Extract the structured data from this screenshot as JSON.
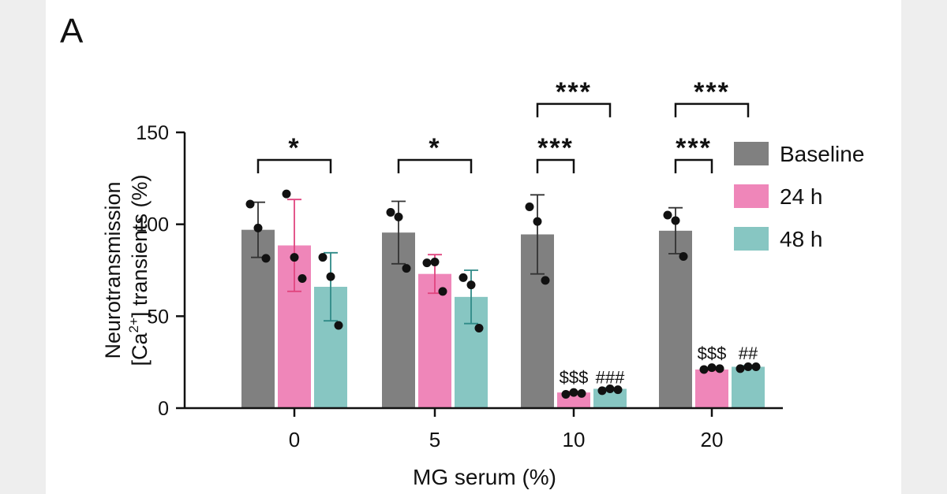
{
  "panel_label": "A",
  "chart_data": {
    "type": "bar",
    "xlabel": "MG serum (%)",
    "ylabel_line1": "Neurotransmission",
    "ylabel_line2_pre": "[Ca",
    "ylabel_line2_sup": "2+",
    "ylabel_line2_post": "] transients (%)",
    "ylim": [
      0,
      150
    ],
    "yticks": [
      0,
      50,
      100,
      150
    ],
    "categories": [
      "0",
      "5",
      "10",
      "20"
    ],
    "legend_position": "right",
    "series": [
      {
        "name": "Baseline",
        "color": "#808080",
        "values": [
          97,
          95.5,
          94.5,
          96.5
        ],
        "sd": [
          15,
          17,
          21.5,
          12.5
        ],
        "points": [
          [
            111,
            98,
            81.5
          ],
          [
            106.5,
            104,
            76
          ],
          [
            109.5,
            101.5,
            69.5
          ],
          [
            105,
            102,
            82.5
          ]
        ]
      },
      {
        "name": "24 h",
        "color": "#ef86b9",
        "errcolor": "#e0457f",
        "values": [
          88.5,
          73,
          8.5,
          21
        ],
        "sd": [
          25,
          10.5,
          0.5,
          0.5
        ],
        "points": [
          [
            116.5,
            82,
            70.5
          ],
          [
            79,
            79.5,
            63.5
          ],
          [
            7.5,
            8.5,
            8
          ],
          [
            21,
            22,
            21.5
          ]
        ]
      },
      {
        "name": "48 h",
        "color": "#87c6c2",
        "errcolor": "#2f8a87",
        "values": [
          66,
          60.5,
          10.5,
          22.5
        ],
        "sd": [
          18.5,
          14.5,
          0.5,
          0.5
        ],
        "points": [
          [
            82,
            71.5,
            45
          ],
          [
            71,
            67,
            43.5
          ],
          [
            9.5,
            10.5,
            10
          ],
          [
            21.5,
            22.5,
            22.5
          ]
        ]
      }
    ],
    "annotations": [
      {
        "text": "$$$",
        "category": 2,
        "series": 1,
        "y": 13.5
      },
      {
        "text": "###",
        "category": 2,
        "series": 2,
        "y": 13.5
      },
      {
        "text": "$$$",
        "category": 3,
        "series": 1,
        "y": 26.5
      },
      {
        "text": "##",
        "category": 3,
        "series": 2,
        "y": 26.5
      }
    ],
    "brackets": [
      {
        "category": 0,
        "from": 0,
        "to": 2,
        "y": 135,
        "label": "*"
      },
      {
        "category": 1,
        "from": 0,
        "to": 2,
        "y": 135,
        "label": "*"
      },
      {
        "category": 2,
        "from": 0,
        "to": 1,
        "y": 135,
        "label": "***"
      },
      {
        "category": 2,
        "from": 0,
        "to": 2,
        "y": 165.5,
        "label": "***"
      },
      {
        "category": 3,
        "from": 0,
        "to": 1,
        "y": 135,
        "label": "***"
      },
      {
        "category": 3,
        "from": 0,
        "to": 2,
        "y": 165.5,
        "label": "***"
      }
    ]
  }
}
